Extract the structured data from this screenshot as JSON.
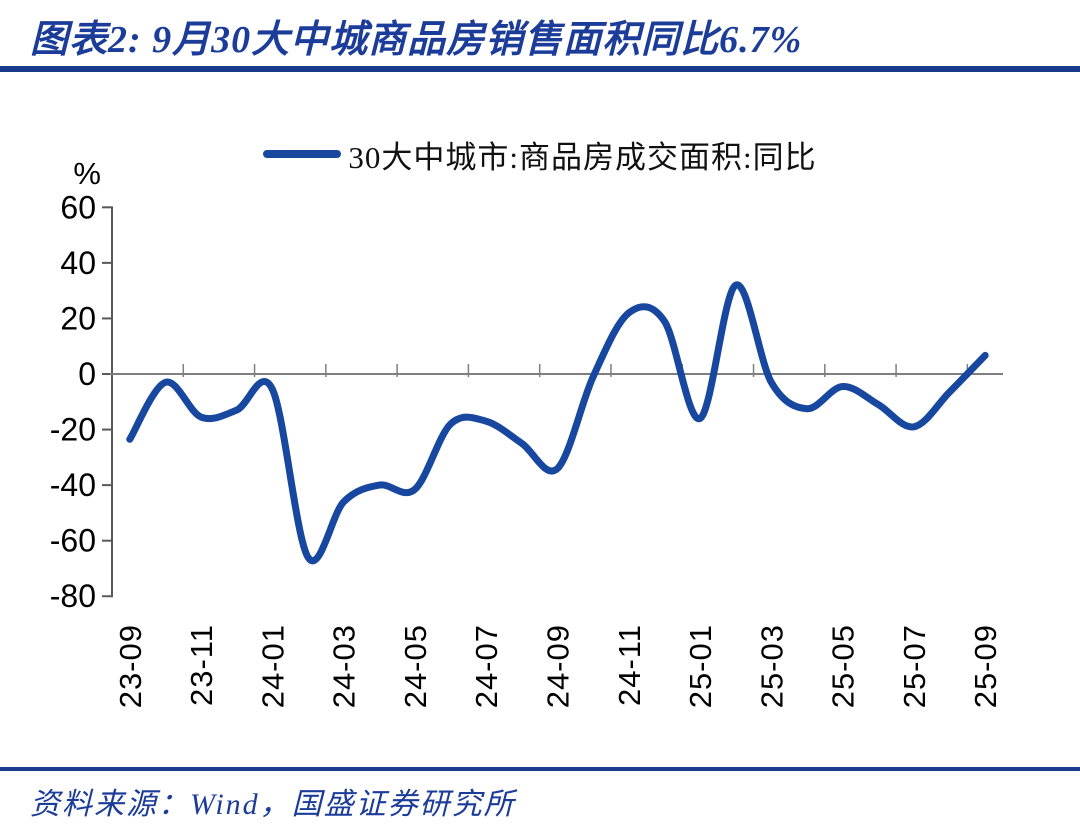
{
  "title": {
    "text": "图表2: 9月30大中城商品房销售面积同比6.7%"
  },
  "legend": {
    "label": "30大中城市:商品房成交面积:同比"
  },
  "footer": {
    "text": "资料来源：Wind，国盛证券研究所"
  },
  "colors": {
    "title_blue": "#1C3C99",
    "rule_blue": "#1A3A8C",
    "line_blue": "#17479E",
    "axis_gray": "#595959",
    "zero_line_gray": "#7F7F7F",
    "label_black": "#000000"
  },
  "chart_data": {
    "type": "line",
    "title": "图表2: 9月30大中城商品房销售面积同比6.7%",
    "ylabel_unit": "%",
    "legend_position": "top-center",
    "grid": false,
    "zero_axis_line": true,
    "ylim": [
      -80,
      60
    ],
    "y_ticks": [
      60,
      40,
      20,
      0,
      -20,
      -40,
      -60,
      -80
    ],
    "x_tick_labels": [
      "23-09",
      "23-11",
      "24-01",
      "24-03",
      "24-05",
      "24-07",
      "24-09",
      "24-11",
      "25-01",
      "25-03",
      "25-05",
      "25-07",
      "25-09"
    ],
    "x": [
      "23-09",
      "23-10",
      "23-11",
      "23-12",
      "24-01",
      "24-02",
      "24-03",
      "24-04",
      "24-05",
      "24-06",
      "24-07",
      "24-08",
      "24-09",
      "24-10",
      "24-11",
      "24-12",
      "25-01",
      "25-02",
      "25-03",
      "25-04",
      "25-05",
      "25-06",
      "25-07",
      "25-08",
      "25-09"
    ],
    "series": [
      {
        "name": "30大中城市:商品房成交面积:同比",
        "color": "#17479E",
        "values": [
          -23.5,
          -3,
          -15.5,
          -13,
          -5.5,
          -66,
          -46,
          -40,
          -41.5,
          -18,
          -17,
          -25,
          -34,
          -1,
          22,
          19,
          -16,
          32,
          -3,
          -12.5,
          -4.5,
          -11,
          -19,
          -6.5,
          6.7
        ]
      }
    ]
  }
}
